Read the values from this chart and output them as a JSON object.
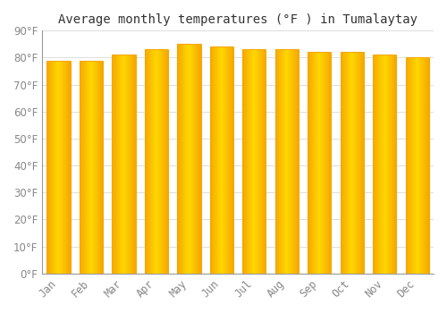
{
  "title": "Average monthly temperatures (°F ) in Tumalaytay",
  "months": [
    "Jan",
    "Feb",
    "Mar",
    "Apr",
    "May",
    "Jun",
    "Jul",
    "Aug",
    "Sep",
    "Oct",
    "Nov",
    "Dec"
  ],
  "values": [
    79,
    79,
    81,
    83,
    85,
    84,
    83,
    83,
    82,
    82,
    81,
    80
  ],
  "bar_color_center": "#FFD700",
  "bar_color_edge": "#F5A800",
  "bar_width": 0.72,
  "background_color": "#FFFFFF",
  "grid_color": "#DDDDDD",
  "ylim": [
    0,
    90
  ],
  "yticks": [
    0,
    10,
    20,
    30,
    40,
    50,
    60,
    70,
    80,
    90
  ],
  "title_fontsize": 10,
  "tick_fontsize": 8.5,
  "tick_label_color": "#888888",
  "spine_color": "#999999"
}
